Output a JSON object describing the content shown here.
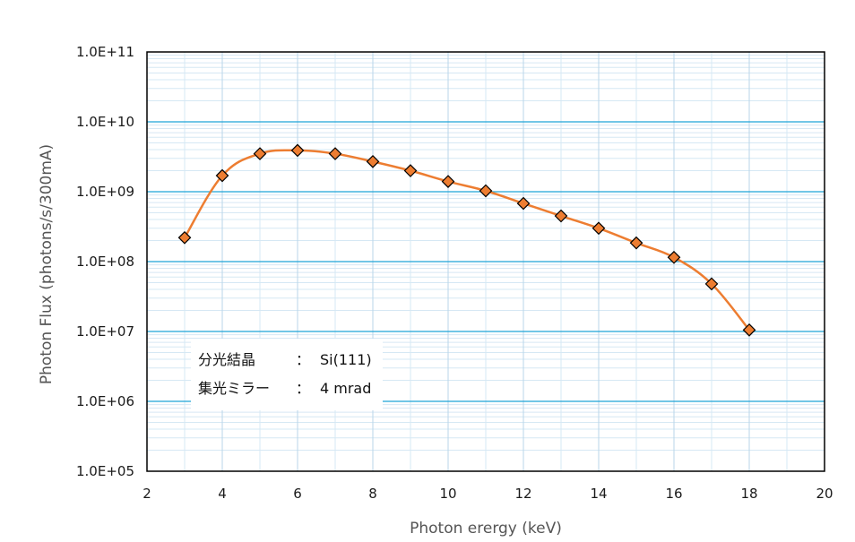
{
  "chart_data": {
    "type": "scatter",
    "x_axis": {
      "label": "Photon erergy (keV)",
      "range": [
        2,
        20
      ],
      "ticks": [
        2,
        4,
        6,
        8,
        10,
        12,
        14,
        16,
        18,
        20
      ],
      "tick_labels": [
        "2",
        "4",
        "6",
        "8",
        "10",
        "12",
        "14",
        "16",
        "18",
        "20"
      ],
      "scale": "linear"
    },
    "y_axis": {
      "label": "Photon Flux (photons/s/300mA)",
      "range": [
        100000,
        100000000000
      ],
      "scale": "log",
      "tick_labels": [
        "1.0E+05",
        "1.0E+06",
        "1.0E+07",
        "1.0E+08",
        "1.0E+09",
        "1.0E+10",
        "1.0E+11"
      ]
    },
    "grid": {
      "major": true,
      "minor": true
    },
    "line_style": "smooth",
    "series": [
      {
        "color": "#ed7d31",
        "marker": "diamond",
        "x": [
          3,
          4,
          5,
          6,
          7,
          8,
          9,
          10,
          11,
          12,
          13,
          14,
          15,
          16,
          17,
          18
        ],
        "y": [
          220000000,
          1700000000,
          3500000000,
          3900000000,
          3500000000,
          2700000000,
          2000000000,
          1400000000,
          1030000000,
          680000000,
          450000000,
          300000000,
          185000000,
          115000000,
          48000000,
          10500000
        ]
      }
    ],
    "annotations": [
      {
        "label": "分光結晶",
        "separator": "：",
        "value": "Si(111)"
      },
      {
        "label": "集光ミラー",
        "separator": "：",
        "value": "4 mrad"
      }
    ]
  }
}
